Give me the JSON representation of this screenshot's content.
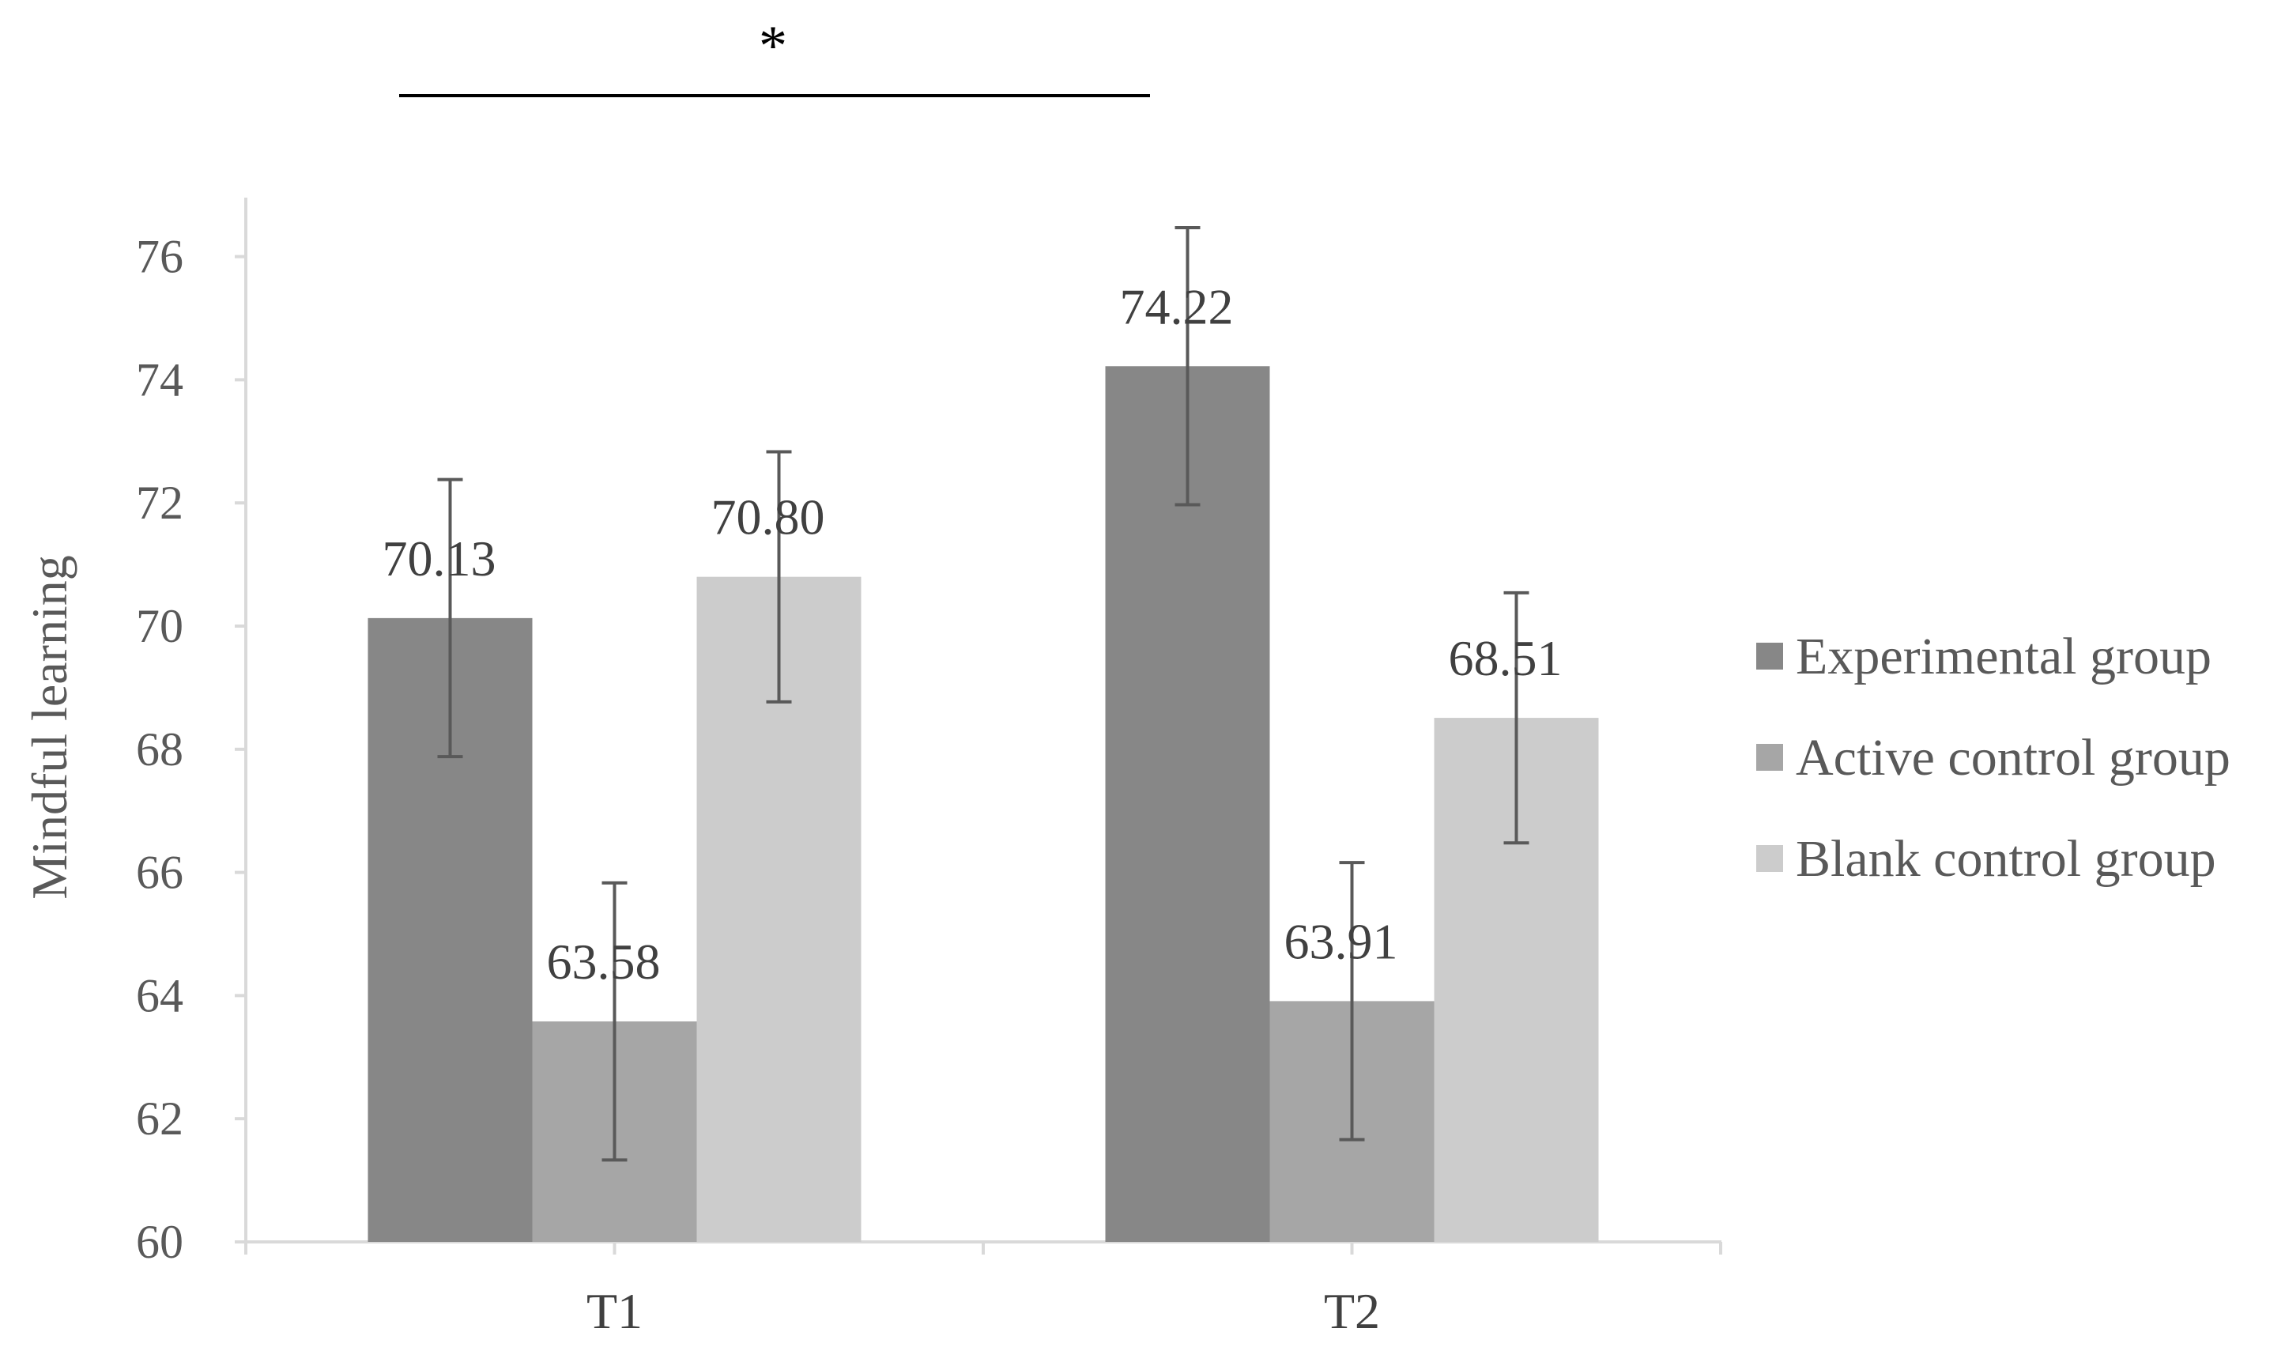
{
  "chart_data": {
    "type": "bar",
    "categories": [
      "T1",
      "T2"
    ],
    "series": [
      {
        "name": "Experimental group",
        "values": [
          70.13,
          74.22
        ],
        "errors": [
          2.25,
          2.25
        ],
        "labels": [
          "70.13",
          "74.22"
        ],
        "color": "#878787"
      },
      {
        "name": "Active control group",
        "values": [
          63.58,
          63.91
        ],
        "errors": [
          2.25,
          2.25
        ],
        "labels": [
          "63.58",
          "63.91"
        ],
        "color": "#a6a6a6"
      },
      {
        "name": "Blank control group",
        "values": [
          70.8,
          68.51
        ],
        "errors": [
          2.03,
          2.03
        ],
        "labels": [
          "70.80",
          "68.51"
        ],
        "color": "#cccccc"
      }
    ],
    "ylabel": "Mindful learning",
    "ylim": [
      60,
      77
    ],
    "yticks": [
      60,
      62,
      64,
      66,
      68,
      70,
      72,
      74,
      76
    ],
    "ytick_labels": [
      "60",
      "62",
      "64",
      "66",
      "68",
      "70",
      "72",
      "74",
      "76"
    ],
    "legend_position": "right",
    "grid": false,
    "annotation": {
      "text": "*",
      "from_category": "T1",
      "from_series": 0,
      "to_category": "T1",
      "to_series": 2
    }
  }
}
